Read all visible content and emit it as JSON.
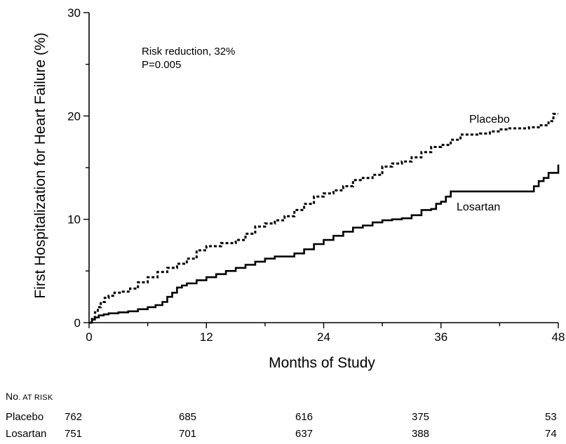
{
  "chart_data": {
    "type": "line",
    "ylabel": "First Hospitalization for Heart Failure (%)",
    "xlabel": "Months of Study",
    "xlim": [
      0,
      48
    ],
    "ylim": [
      0,
      30
    ],
    "x_ticks": [
      0,
      12,
      24,
      36,
      48
    ],
    "y_ticks": [
      0,
      10,
      20,
      30
    ],
    "grid": false,
    "annotation_lines": [
      "Risk reduction, 32%",
      "P=0.005"
    ],
    "series": [
      {
        "name": "Placebo",
        "style": "dashed",
        "x": [
          0,
          0.3,
          0.6,
          0.9,
          1.2,
          1.6,
          2.0,
          2.6,
          3.3,
          4.2,
          5.0,
          6.0,
          7.0,
          8.0,
          9.0,
          10.0,
          11.0,
          12.0,
          13.5,
          15.0,
          16.0,
          17.0,
          18.0,
          19.0,
          20.0,
          21.0,
          22.0,
          23.0,
          24.0,
          25.0,
          26.0,
          27.0,
          28.0,
          29.0,
          30.0,
          31.0,
          32.0,
          33.0,
          34.0,
          35.0,
          36.0,
          37.0,
          38.0,
          39.0,
          40.0,
          41.0,
          42.0,
          43.0,
          44.0,
          45.0,
          46.0,
          47.0,
          47.5,
          48.0
        ],
        "values": [
          0,
          0.5,
          1.0,
          1.5,
          2.0,
          2.4,
          2.6,
          2.9,
          3.0,
          3.3,
          3.9,
          4.4,
          4.9,
          5.3,
          5.7,
          6.2,
          7.0,
          7.4,
          7.7,
          8.0,
          8.6,
          9.3,
          9.6,
          9.9,
          10.3,
          10.9,
          11.5,
          12.2,
          12.5,
          12.8,
          13.2,
          13.8,
          14.0,
          14.3,
          15.1,
          15.4,
          15.6,
          16.0,
          16.5,
          17.0,
          17.2,
          17.7,
          18.2,
          18.2,
          18.3,
          18.5,
          18.7,
          18.8,
          18.8,
          18.9,
          19.1,
          19.5,
          20.2,
          20.2
        ]
      },
      {
        "name": "Losartan",
        "style": "solid",
        "x": [
          0,
          0.3,
          0.6,
          1.0,
          1.5,
          2.0,
          3.0,
          4.0,
          5.0,
          6.0,
          6.8,
          7.5,
          8.0,
          8.5,
          9.0,
          9.5,
          10.0,
          11.0,
          12.0,
          13.0,
          14.0,
          15.0,
          16.0,
          17.0,
          18.0,
          19.0,
          20.0,
          21.0,
          22.0,
          23.0,
          24.0,
          25.0,
          26.0,
          27.0,
          28.0,
          29.0,
          30.0,
          31.0,
          32.0,
          33.0,
          34.0,
          35.0,
          35.5,
          36.0,
          36.5,
          37.0,
          40.0,
          43.0,
          45.0,
          45.5,
          46.0,
          46.5,
          47.0,
          47.5,
          48.0
        ],
        "values": [
          0,
          0.3,
          0.5,
          0.7,
          0.8,
          0.9,
          1.0,
          1.1,
          1.3,
          1.5,
          1.7,
          2.0,
          2.5,
          2.9,
          3.4,
          3.6,
          3.8,
          4.1,
          4.4,
          4.7,
          5.0,
          5.3,
          5.6,
          5.9,
          6.2,
          6.4,
          6.4,
          6.7,
          7.1,
          7.6,
          8.0,
          8.4,
          8.8,
          9.2,
          9.4,
          9.7,
          9.9,
          10.0,
          10.1,
          10.4,
          10.9,
          11.0,
          11.5,
          11.7,
          12.2,
          12.7,
          12.7,
          12.7,
          12.7,
          13.2,
          13.7,
          14.0,
          14.5,
          14.5,
          15.3
        ]
      }
    ]
  },
  "risk_table": {
    "header_first": "No",
    "header_rest": ". at Risk",
    "rows": [
      {
        "name": "Placebo",
        "values": [
          "762",
          "685",
          "616",
          "375",
          "53"
        ]
      },
      {
        "name": "Losartan",
        "values": [
          "751",
          "701",
          "637",
          "388",
          "74"
        ]
      }
    ]
  }
}
